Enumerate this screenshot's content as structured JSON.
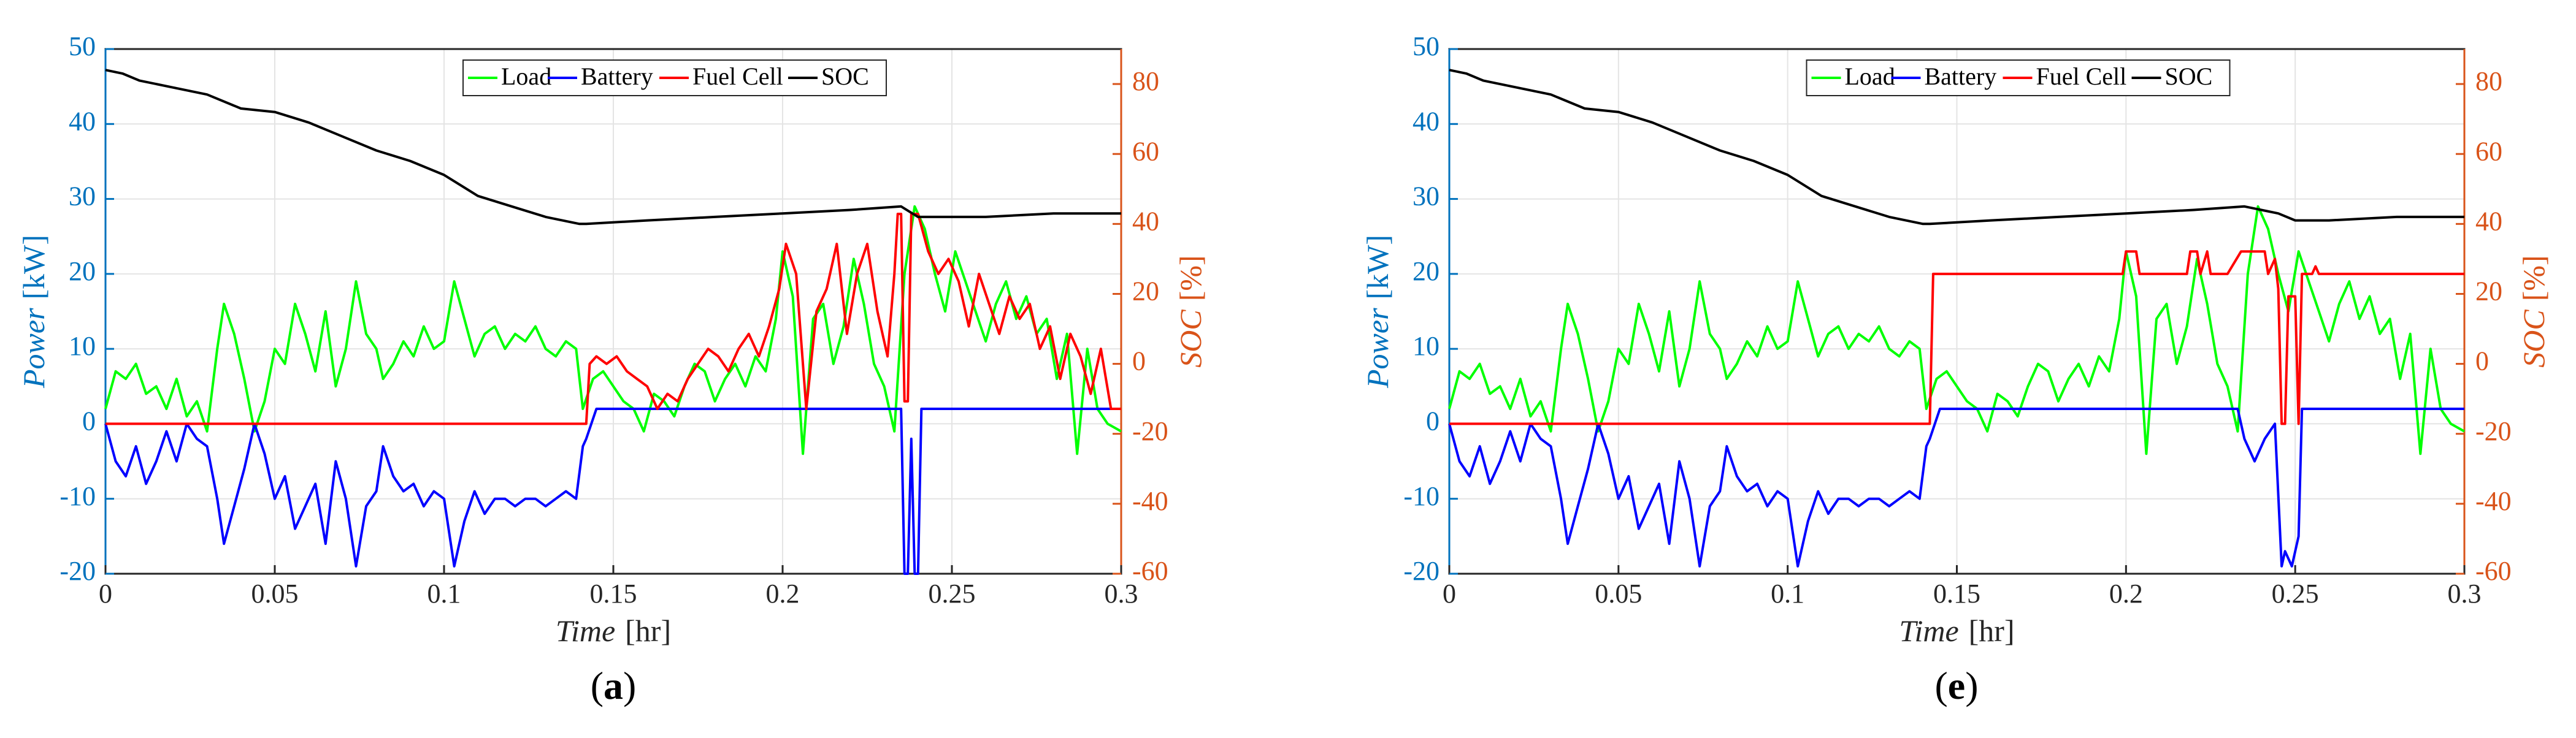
{
  "chart_data": [
    {
      "type": "line",
      "panel_label": "a",
      "xlabel": "Time",
      "xunit": "[hr]",
      "ylabel_left": "Power",
      "yunit_left": "[kW]",
      "ylabel_right": "SOC",
      "yunit_right": "[%]",
      "xlim": [
        0,
        0.3
      ],
      "ylim_left": [
        -20,
        50
      ],
      "ylim_right": [
        -60,
        90
      ],
      "xticks": [
        0,
        0.05,
        0.1,
        0.15,
        0.2,
        0.25,
        0.3
      ],
      "xtick_labels": [
        "0",
        "0.05",
        "0.1",
        "0.15",
        "0.2",
        "0.25",
        "0.3"
      ],
      "yticks_left": [
        -20,
        -10,
        0,
        10,
        20,
        30,
        40,
        50
      ],
      "yticks_right": [
        -60,
        -40,
        -20,
        0,
        20,
        40,
        60,
        80
      ],
      "grid": true,
      "legend_position": "top-center",
      "series": [
        {
          "name": "Load",
          "color": "#00FF00",
          "axis": "left",
          "x": [
            0,
            0.003,
            0.006,
            0.009,
            0.012,
            0.015,
            0.018,
            0.021,
            0.024,
            0.027,
            0.03,
            0.033,
            0.035,
            0.038,
            0.041,
            0.044,
            0.047,
            0.05,
            0.053,
            0.056,
            0.059,
            0.062,
            0.065,
            0.068,
            0.071,
            0.074,
            0.077,
            0.08,
            0.082,
            0.085,
            0.088,
            0.091,
            0.094,
            0.097,
            0.1,
            0.103,
            0.106,
            0.109,
            0.112,
            0.115,
            0.118,
            0.121,
            0.124,
            0.127,
            0.13,
            0.133,
            0.136,
            0.139,
            0.141,
            0.144,
            0.147,
            0.15,
            0.153,
            0.156,
            0.159,
            0.162,
            0.165,
            0.168,
            0.171,
            0.174,
            0.177,
            0.18,
            0.183,
            0.186,
            0.189,
            0.192,
            0.195,
            0.198,
            0.2,
            0.203,
            0.206,
            0.209,
            0.212,
            0.215,
            0.218,
            0.221,
            0.224,
            0.227,
            0.23,
            0.233,
            0.236,
            0.239,
            0.242,
            0.245,
            0.248,
            0.251,
            0.254,
            0.257,
            0.26,
            0.263,
            0.266,
            0.269,
            0.272,
            0.275,
            0.278,
            0.281,
            0.284,
            0.287,
            0.29,
            0.293,
            0.296,
            0.3
          ],
          "y": [
            2,
            7,
            6,
            8,
            4,
            5,
            2,
            6,
            1,
            3,
            -1,
            10,
            16,
            12,
            6,
            -1,
            3,
            10,
            8,
            16,
            12,
            7,
            15,
            5,
            10,
            19,
            12,
            10,
            6,
            8,
            11,
            9,
            13,
            10,
            11,
            19,
            14,
            9,
            12,
            13,
            10,
            12,
            11,
            13,
            10,
            9,
            11,
            10,
            2,
            6,
            7,
            5,
            3,
            2,
            -1,
            4,
            3,
            1,
            5,
            8,
            7,
            3,
            6,
            8,
            5,
            9,
            7,
            14,
            23,
            17,
            -4,
            14,
            16,
            8,
            13,
            22,
            16,
            8,
            5,
            -1,
            20,
            29,
            26,
            20,
            15,
            23,
            19,
            15,
            11,
            16,
            19,
            14,
            17,
            12,
            14,
            6,
            12,
            -4,
            10,
            2,
            0,
            -1
          ]
        },
        {
          "name": "Battery",
          "color": "#0000FF",
          "axis": "left",
          "x": [
            0,
            0.003,
            0.006,
            0.009,
            0.012,
            0.015,
            0.018,
            0.021,
            0.024,
            0.027,
            0.03,
            0.033,
            0.035,
            0.038,
            0.041,
            0.044,
            0.047,
            0.05,
            0.053,
            0.056,
            0.059,
            0.062,
            0.065,
            0.068,
            0.071,
            0.074,
            0.077,
            0.08,
            0.082,
            0.085,
            0.088,
            0.091,
            0.094,
            0.097,
            0.1,
            0.103,
            0.106,
            0.109,
            0.112,
            0.115,
            0.118,
            0.121,
            0.124,
            0.127,
            0.13,
            0.133,
            0.136,
            0.139,
            0.141,
            0.142,
            0.145,
            0.235,
            0.236,
            0.237,
            0.238,
            0.239,
            0.24,
            0.241,
            0.3
          ],
          "y": [
            0,
            -5,
            -7,
            -3,
            -8,
            -5,
            -1,
            -5,
            0,
            -2,
            -3,
            -10,
            -16,
            -11,
            -6,
            0,
            -4,
            -10,
            -7,
            -14,
            -11,
            -8,
            -16,
            -5,
            -10,
            -19,
            -11,
            -9,
            -3,
            -7,
            -9,
            -8,
            -11,
            -9,
            -10,
            -19,
            -13,
            -9,
            -12,
            -10,
            -10,
            -11,
            -10,
            -10,
            -11,
            -10,
            -9,
            -10,
            -3,
            -2,
            2,
            2,
            -25,
            -25,
            -2,
            -25,
            -25,
            2,
            2
          ]
        },
        {
          "name": "Fuel Cell",
          "color": "#FF0000",
          "axis": "left",
          "x": [
            0,
            0.142,
            0.143,
            0.145,
            0.148,
            0.151,
            0.154,
            0.157,
            0.16,
            0.163,
            0.166,
            0.169,
            0.172,
            0.175,
            0.178,
            0.181,
            0.184,
            0.187,
            0.19,
            0.193,
            0.196,
            0.199,
            0.201,
            0.204,
            0.207,
            0.21,
            0.213,
            0.216,
            0.219,
            0.222,
            0.225,
            0.228,
            0.231,
            0.233,
            0.234,
            0.235,
            0.236,
            0.237,
            0.238,
            0.24,
            0.243,
            0.246,
            0.249,
            0.252,
            0.255,
            0.258,
            0.261,
            0.264,
            0.267,
            0.27,
            0.273,
            0.276,
            0.279,
            0.282,
            0.285,
            0.288,
            0.291,
            0.294,
            0.297,
            0.3
          ],
          "y": [
            0,
            0,
            8,
            9,
            8,
            9,
            7,
            6,
            5,
            2,
            4,
            3,
            6,
            8,
            10,
            9,
            7,
            10,
            12,
            9,
            13,
            18,
            24,
            20,
            2,
            15,
            18,
            24,
            12,
            20,
            24,
            15,
            9,
            20,
            28,
            28,
            3,
            3,
            28,
            28,
            23,
            20,
            22,
            19,
            13,
            20,
            16,
            12,
            17,
            14,
            16,
            10,
            13,
            6,
            12,
            9,
            4,
            10,
            2,
            2
          ]
        },
        {
          "name": "SOC",
          "color": "#000000",
          "axis": "right",
          "x": [
            0,
            0.005,
            0.01,
            0.02,
            0.03,
            0.04,
            0.05,
            0.06,
            0.07,
            0.08,
            0.09,
            0.1,
            0.11,
            0.12,
            0.13,
            0.14,
            0.142,
            0.16,
            0.18,
            0.2,
            0.22,
            0.235,
            0.24,
            0.26,
            0.28,
            0.3
          ],
          "y": [
            84,
            83,
            81,
            79,
            77,
            73,
            72,
            69,
            65,
            61,
            58,
            54,
            48,
            45,
            42,
            40,
            40,
            41,
            42,
            43,
            44,
            45,
            42,
            42,
            43,
            43
          ]
        }
      ]
    },
    {
      "type": "line",
      "panel_label": "e",
      "xlabel": "Time",
      "xunit": "[hr]",
      "ylabel_left": "Power",
      "yunit_left": "[kW]",
      "ylabel_right": "SOC",
      "yunit_right": "[%]",
      "xlim": [
        0,
        0.3
      ],
      "ylim_left": [
        -20,
        50
      ],
      "ylim_right": [
        -60,
        90
      ],
      "xticks": [
        0,
        0.05,
        0.1,
        0.15,
        0.2,
        0.25,
        0.3
      ],
      "xtick_labels": [
        "0",
        "0.05",
        "0.1",
        "0.15",
        "0.2",
        "0.25",
        "0.3"
      ],
      "yticks_left": [
        -20,
        -10,
        0,
        10,
        20,
        30,
        40,
        50
      ],
      "yticks_right": [
        -60,
        -40,
        -20,
        0,
        20,
        40,
        60,
        80
      ],
      "grid": true,
      "legend_position": "top-center",
      "series": [
        {
          "name": "Load",
          "color": "#00FF00",
          "axis": "left",
          "x": [
            0,
            0.003,
            0.006,
            0.009,
            0.012,
            0.015,
            0.018,
            0.021,
            0.024,
            0.027,
            0.03,
            0.033,
            0.035,
            0.038,
            0.041,
            0.044,
            0.047,
            0.05,
            0.053,
            0.056,
            0.059,
            0.062,
            0.065,
            0.068,
            0.071,
            0.074,
            0.077,
            0.08,
            0.082,
            0.085,
            0.088,
            0.091,
            0.094,
            0.097,
            0.1,
            0.103,
            0.106,
            0.109,
            0.112,
            0.115,
            0.118,
            0.121,
            0.124,
            0.127,
            0.13,
            0.133,
            0.136,
            0.139,
            0.141,
            0.144,
            0.147,
            0.15,
            0.153,
            0.156,
            0.159,
            0.162,
            0.165,
            0.168,
            0.171,
            0.174,
            0.177,
            0.18,
            0.183,
            0.186,
            0.189,
            0.192,
            0.195,
            0.198,
            0.2,
            0.203,
            0.206,
            0.209,
            0.212,
            0.215,
            0.218,
            0.221,
            0.224,
            0.227,
            0.23,
            0.233,
            0.236,
            0.239,
            0.242,
            0.245,
            0.248,
            0.251,
            0.254,
            0.257,
            0.26,
            0.263,
            0.266,
            0.269,
            0.272,
            0.275,
            0.278,
            0.281,
            0.284,
            0.287,
            0.29,
            0.293,
            0.296,
            0.3
          ],
          "y": [
            2,
            7,
            6,
            8,
            4,
            5,
            2,
            6,
            1,
            3,
            -1,
            10,
            16,
            12,
            6,
            -1,
            3,
            10,
            8,
            16,
            12,
            7,
            15,
            5,
            10,
            19,
            12,
            10,
            6,
            8,
            11,
            9,
            13,
            10,
            11,
            19,
            14,
            9,
            12,
            13,
            10,
            12,
            11,
            13,
            10,
            9,
            11,
            10,
            2,
            6,
            7,
            5,
            3,
            2,
            -1,
            4,
            3,
            1,
            5,
            8,
            7,
            3,
            6,
            8,
            5,
            9,
            7,
            14,
            23,
            17,
            -4,
            14,
            16,
            8,
            13,
            22,
            16,
            8,
            5,
            -1,
            20,
            29,
            26,
            20,
            15,
            23,
            19,
            15,
            11,
            16,
            19,
            14,
            17,
            12,
            14,
            6,
            12,
            -4,
            10,
            2,
            0,
            -1
          ]
        },
        {
          "name": "Battery",
          "color": "#0000FF",
          "axis": "left",
          "x": [
            0,
            0.003,
            0.006,
            0.009,
            0.012,
            0.015,
            0.018,
            0.021,
            0.024,
            0.027,
            0.03,
            0.033,
            0.035,
            0.038,
            0.041,
            0.044,
            0.047,
            0.05,
            0.053,
            0.056,
            0.059,
            0.062,
            0.065,
            0.068,
            0.071,
            0.074,
            0.077,
            0.08,
            0.082,
            0.085,
            0.088,
            0.091,
            0.094,
            0.097,
            0.1,
            0.103,
            0.106,
            0.109,
            0.112,
            0.115,
            0.118,
            0.121,
            0.124,
            0.127,
            0.13,
            0.133,
            0.136,
            0.139,
            0.141,
            0.142,
            0.145,
            0.233,
            0.235,
            0.238,
            0.241,
            0.244,
            0.246,
            0.247,
            0.249,
            0.251,
            0.252,
            0.3
          ],
          "y": [
            0,
            -5,
            -7,
            -3,
            -8,
            -5,
            -1,
            -5,
            0,
            -2,
            -3,
            -10,
            -16,
            -11,
            -6,
            0,
            -4,
            -10,
            -7,
            -14,
            -11,
            -8,
            -16,
            -5,
            -10,
            -19,
            -11,
            -9,
            -3,
            -7,
            -9,
            -8,
            -11,
            -9,
            -10,
            -19,
            -13,
            -9,
            -12,
            -10,
            -10,
            -11,
            -10,
            -10,
            -11,
            -10,
            -9,
            -10,
            -3,
            -2,
            2,
            2,
            -2,
            -5,
            -2,
            0,
            -19,
            -17,
            -19,
            -15,
            2,
            2
          ]
        },
        {
          "name": "Fuel Cell",
          "color": "#FF0000",
          "axis": "left",
          "x": [
            0,
            0.142,
            0.143,
            0.199,
            0.2,
            0.203,
            0.204,
            0.218,
            0.219,
            0.221,
            0.222,
            0.224,
            0.225,
            0.23,
            0.234,
            0.241,
            0.242,
            0.244,
            0.245,
            0.246,
            0.247,
            0.248,
            0.25,
            0.251,
            0.252,
            0.255,
            0.256,
            0.257,
            0.3
          ],
          "y": [
            0,
            0,
            20,
            20,
            23,
            23,
            20,
            20,
            23,
            23,
            20,
            23,
            20,
            20,
            23,
            23,
            20,
            22,
            18,
            0,
            0,
            17,
            17,
            0,
            20,
            20,
            21,
            20,
            20
          ]
        },
        {
          "name": "SOC",
          "color": "#000000",
          "axis": "right",
          "x": [
            0,
            0.005,
            0.01,
            0.02,
            0.03,
            0.04,
            0.05,
            0.06,
            0.07,
            0.08,
            0.09,
            0.1,
            0.11,
            0.12,
            0.13,
            0.14,
            0.142,
            0.16,
            0.18,
            0.2,
            0.22,
            0.235,
            0.24,
            0.245,
            0.25,
            0.26,
            0.28,
            0.3
          ],
          "y": [
            84,
            83,
            81,
            79,
            77,
            73,
            72,
            69,
            65,
            61,
            58,
            54,
            48,
            45,
            42,
            40,
            40,
            41,
            42,
            43,
            44,
            45,
            44,
            43,
            41,
            41,
            42,
            42
          ]
        }
      ]
    }
  ]
}
